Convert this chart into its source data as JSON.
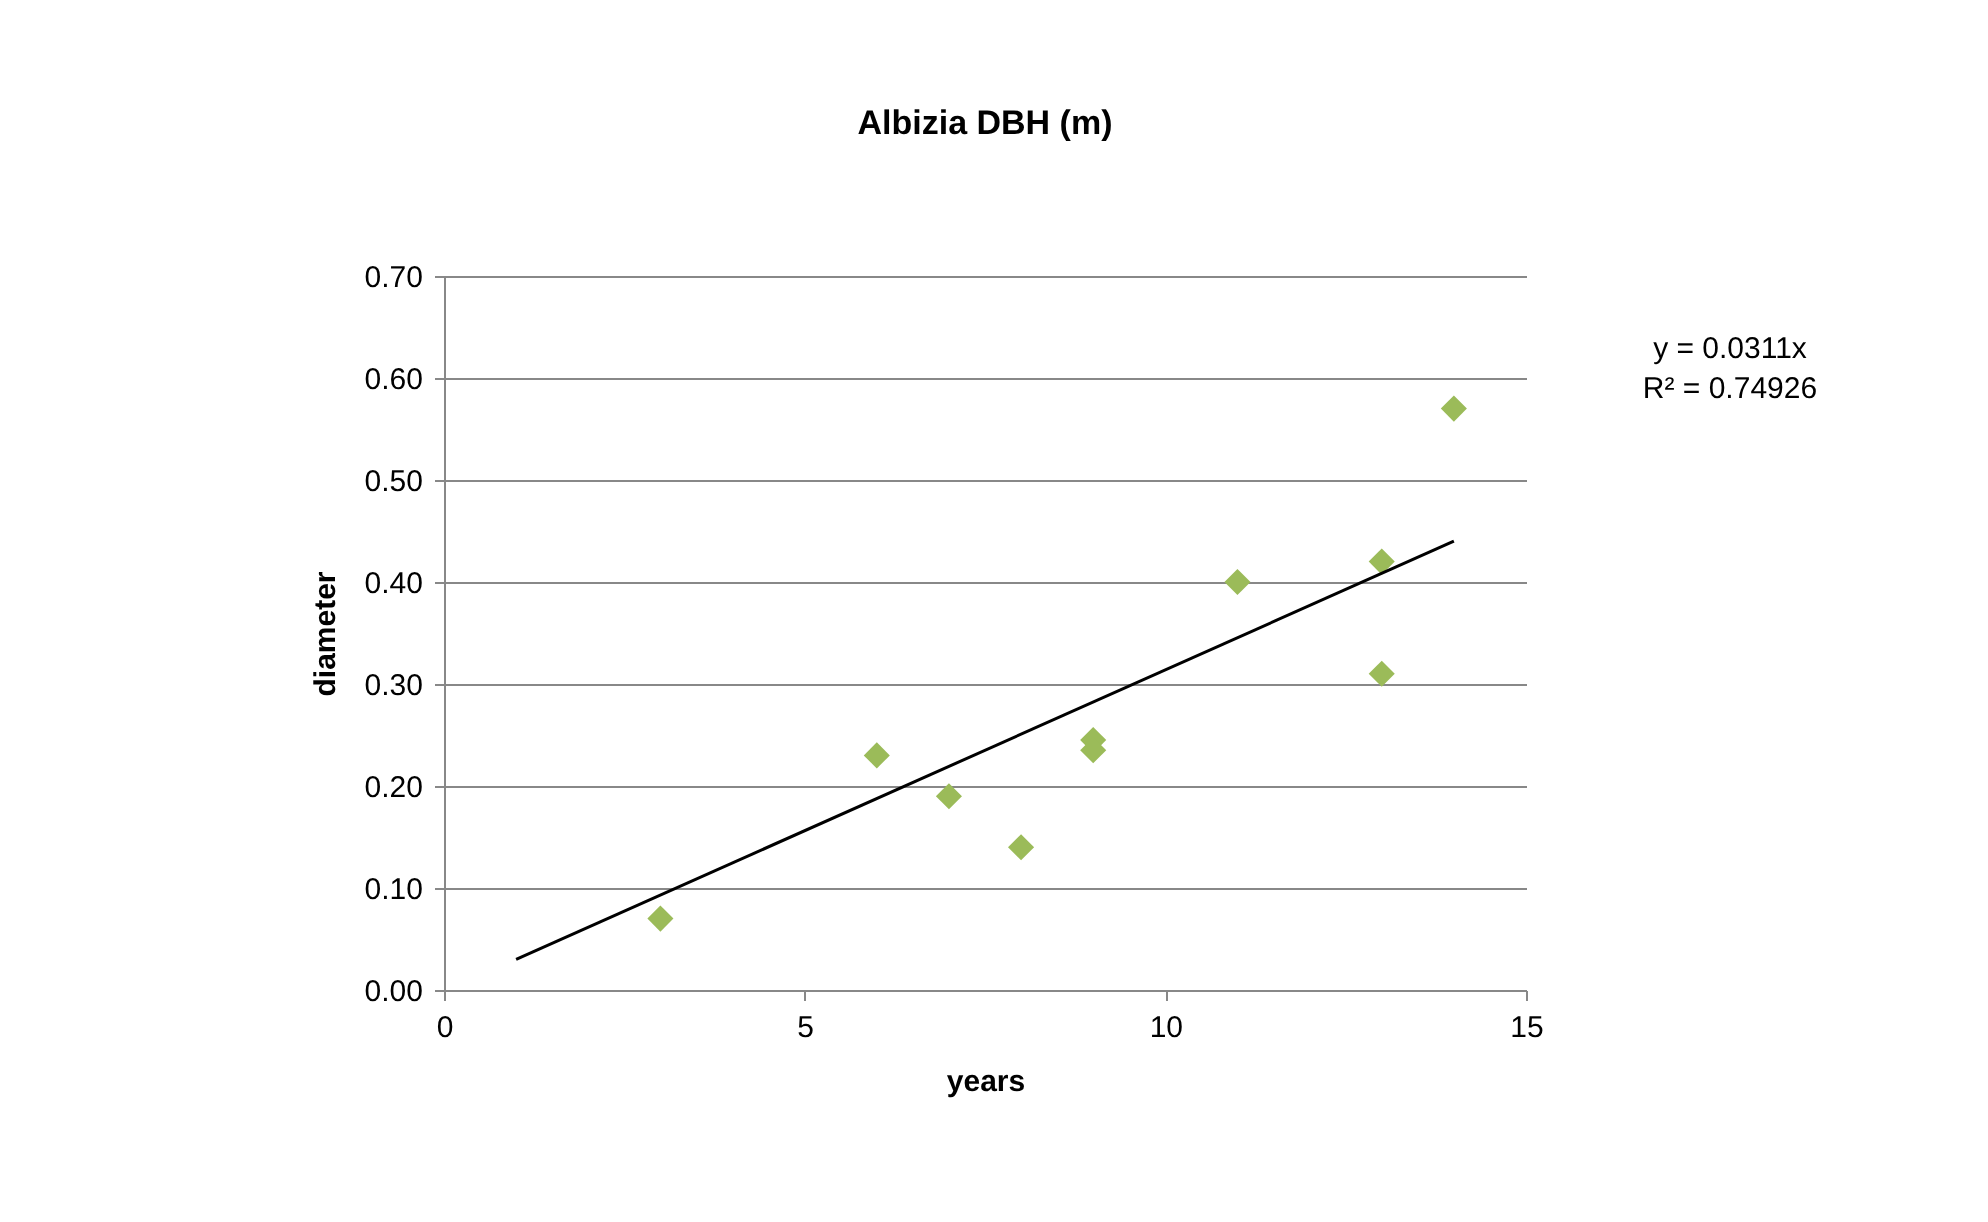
{
  "chart_data": {
    "type": "scatter",
    "title": "Albizia DBH (m)",
    "xlabel": "years",
    "ylabel": "diameter",
    "xlim": [
      0,
      15
    ],
    "xticks": [
      0,
      5,
      10,
      15
    ],
    "ylim": [
      0,
      0.7
    ],
    "yticks": [
      {
        "value": 0,
        "label": "0.00"
      },
      {
        "value": 0.1,
        "label": "0.10"
      },
      {
        "value": 0.2,
        "label": "0.20"
      },
      {
        "value": 0.3,
        "label": "0.30"
      },
      {
        "value": 0.4,
        "label": "0.40"
      },
      {
        "value": 0.5,
        "label": "0.50"
      },
      {
        "value": 0.6,
        "label": "0.60"
      },
      {
        "value": 0.7,
        "label": "0.70"
      }
    ],
    "grid": "y",
    "marker": "diamond",
    "series": [
      {
        "color": "#9bbb59",
        "x": [
          3,
          6,
          7,
          8,
          9,
          9,
          11,
          13,
          13,
          14
        ],
        "values": [
          0.07,
          0.23,
          0.19,
          0.14,
          0.245,
          0.235,
          0.4,
          0.42,
          0.31,
          0.57
        ]
      },
      {
        "type": "line",
        "color": "#000000",
        "marker": "none",
        "x": [
          1,
          14
        ],
        "values": [
          0.03,
          0.44
        ]
      }
    ],
    "annotations": [
      "y = 0.0311x",
      "R² = 0.74926"
    ]
  }
}
